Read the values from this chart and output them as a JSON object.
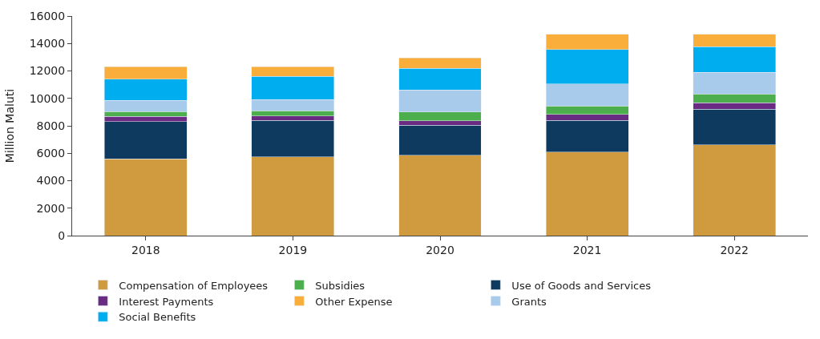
{
  "chart_data": {
    "type": "bar",
    "stacked": true,
    "ylabel": "Million Maluti",
    "categories": [
      "2018",
      "2019",
      "2020",
      "2021",
      "2022"
    ],
    "series": [
      {
        "name": "Compensation of Employees",
        "color": "#d09b3e",
        "values": [
          5600,
          5750,
          5850,
          6100,
          6600
        ]
      },
      {
        "name": "Use of Goods and Services",
        "color": "#0d3a5e",
        "values": [
          2700,
          2650,
          2200,
          2300,
          2600
        ]
      },
      {
        "name": "Interest Payments",
        "color": "#6a2c82",
        "values": [
          400,
          330,
          320,
          430,
          470
        ]
      },
      {
        "name": "Subsidies",
        "color": "#4cae4c",
        "values": [
          350,
          370,
          630,
          630,
          640
        ]
      },
      {
        "name": "Grants",
        "color": "#a9cbeb",
        "values": [
          800,
          800,
          1600,
          1600,
          1600
        ]
      },
      {
        "name": "Social Benefits",
        "color": "#00aeef",
        "values": [
          1550,
          1700,
          1600,
          2500,
          1850
        ]
      },
      {
        "name": "Other Expense",
        "color": "#f9ae3c",
        "values": [
          900,
          700,
          740,
          1100,
          900
        ]
      }
    ],
    "ylim": [
      0,
      16000
    ],
    "yticks": [
      0,
      2000,
      4000,
      6000,
      8000,
      10000,
      12000,
      14000,
      16000
    ],
    "legend": "bottom"
  }
}
